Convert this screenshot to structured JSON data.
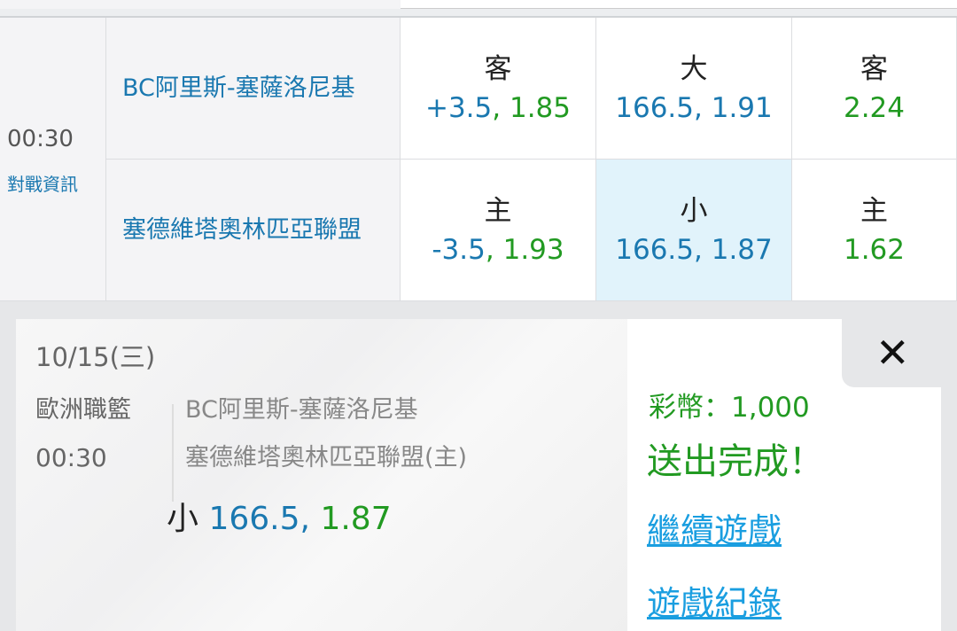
{
  "match": {
    "time": "00:30",
    "info_link": "對戰資訊",
    "away_team": "BC阿里斯-塞薩洛尼基",
    "home_team": "塞德維塔奧林匹亞聯盟",
    "away": {
      "handicap": {
        "label": "客",
        "value": "+3.5",
        "odds": "1.85"
      },
      "total": {
        "label": "大",
        "value": "166.5",
        "odds": "1.91"
      },
      "moneyline": {
        "label": "客",
        "odds": "2.24"
      }
    },
    "home": {
      "handicap": {
        "label": "主",
        "value": "-3.5",
        "odds": "1.93"
      },
      "total": {
        "label": "小",
        "value": "166.5",
        "odds": "1.87"
      },
      "moneyline": {
        "label": "主",
        "odds": "1.62"
      }
    }
  },
  "receipt": {
    "date": "10/15(三)",
    "league": "歐洲職籃",
    "time": "00:30",
    "team1": "BC阿里斯-塞薩洛尼基",
    "team2": "塞德維塔奧林匹亞聯盟(主)",
    "pick_label": "小",
    "pick_value": "166.5,",
    "pick_odds": "1.87",
    "coins": "彩幣：1,000",
    "status": "送出完成！",
    "continue": "繼續遊戲",
    "history": "遊戲紀錄"
  },
  "colors": {
    "blue": "#1a78b0",
    "green": "#229a22",
    "link": "#1a9ee0",
    "selected": "#e1f3fb"
  }
}
